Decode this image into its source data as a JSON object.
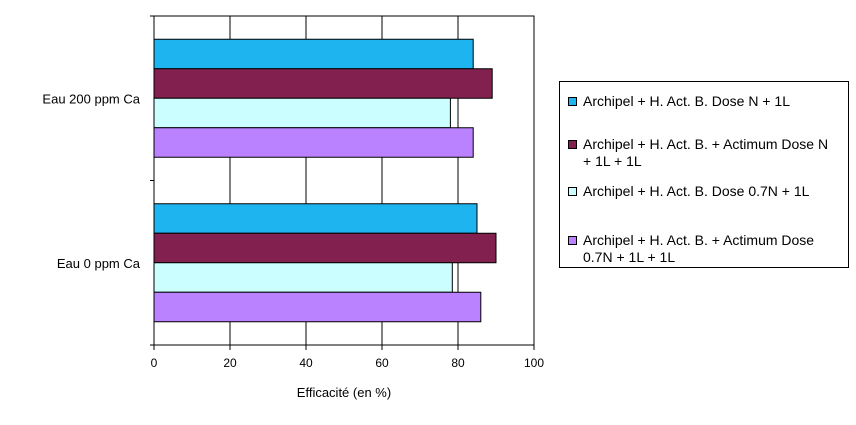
{
  "chart_data": {
    "type": "bar",
    "orientation": "horizontal",
    "categories": [
      "Eau 200 ppm Ca",
      "Eau 0 ppm Ca"
    ],
    "series": [
      {
        "name": "Archipel + H. Act. B. Dose N + 1L",
        "color": "#1eb4f0",
        "values": [
          84,
          85
        ]
      },
      {
        "name": "Archipel + H. Act. B. + Actimum Dose N + 1L + 1L",
        "color": "#82214f",
        "values": [
          89,
          90
        ]
      },
      {
        "name": "Archipel + H. Act. B. Dose 0.7N + 1L",
        "color": "#cbffff",
        "values": [
          78,
          78.5
        ]
      },
      {
        "name": "Archipel + H. Act. B. + Actimum Dose 0.7N + 1L + 1L",
        "color": "#bb82ff",
        "values": [
          84,
          86
        ]
      }
    ],
    "xlabel": "Efficacité (en %)",
    "ylabel": "",
    "title": "",
    "xlim": [
      0,
      100
    ],
    "xticks": [
      "0",
      "20",
      "40",
      "60",
      "80",
      "100"
    ],
    "grid": true,
    "legend_position": "right"
  }
}
